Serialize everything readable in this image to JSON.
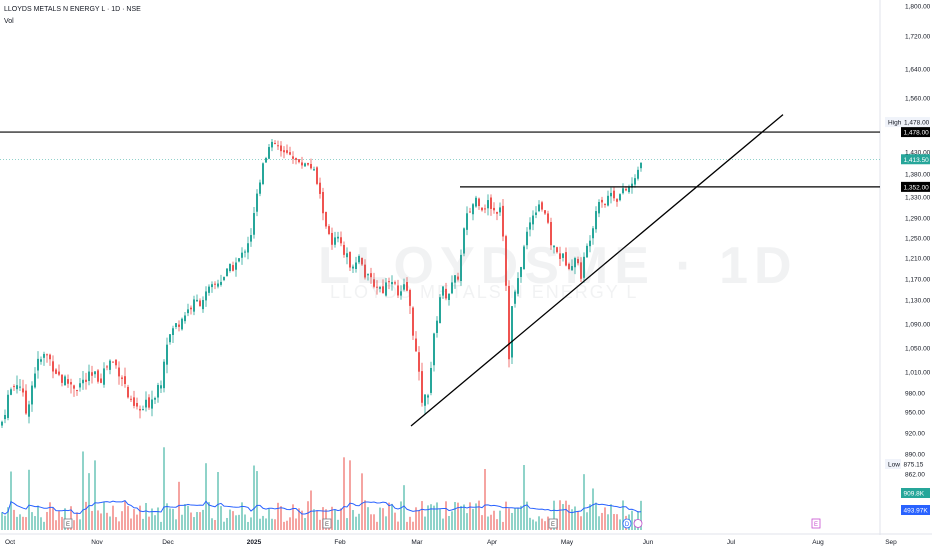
{
  "legend": {
    "symbol_line": "LLOYDS METALS N ENERGY L · 1D · NSE",
    "vol_label": "Vol"
  },
  "watermark": {
    "ticker": "LLOYDSME · 1D",
    "name": "LLOYDS METALS N ENERGY L"
  },
  "colors": {
    "up": "#26a69a",
    "down": "#ef5350",
    "vol_up": "#8fd3c9",
    "vol_down": "#f5a4a1",
    "ma": "#2962ff",
    "line": "#000000",
    "accent": "#2962ff"
  },
  "chart_data": {
    "type": "candlestick",
    "title": "LLOYDS METALS N ENERGY L · 1D · NSE",
    "y_ticks": [
      "1,800.00",
      "1,720.00",
      "1,640.00",
      "1,560.00",
      "1,430.00",
      "1,380.00",
      "1,330.00",
      "1,290.00",
      "1,250.00",
      "1,210.00",
      "1,170.00",
      "1,130.00",
      "1,090.00",
      "1,050.00",
      "1,010.00",
      "980.00",
      "950.00",
      "920.00",
      "890.00",
      "862.00"
    ],
    "price_labels": [
      {
        "text": "1,478.00",
        "style": "black"
      },
      {
        "text": "1,413.50",
        "style": "green"
      },
      {
        "text": "1,352.00",
        "style": "black"
      },
      {
        "text": "875.15",
        "style": "plain"
      },
      {
        "text": "909.8K",
        "style": "teal"
      },
      {
        "text": "493.97K",
        "style": "blue"
      }
    ],
    "high_label": {
      "title": "High",
      "value": "1,478.00"
    },
    "low_label": {
      "title": "Low",
      "value": "875.15"
    },
    "x_ticks": [
      "Oct",
      "Nov",
      "Dec",
      "2025",
      "Feb",
      "Mar",
      "Apr",
      "May",
      "Jun",
      "Jul",
      "Aug",
      "Sep"
    ],
    "event_markers": [
      {
        "text": "E",
        "month": "Nov"
      },
      {
        "text": "E",
        "month": "Feb"
      },
      {
        "text": "E",
        "month": "May"
      },
      {
        "text": "E",
        "month": "Aug"
      },
      {
        "text": "D",
        "month": "Jun"
      }
    ],
    "horizontal_levels": [
      1478,
      1352
    ],
    "trendline": {
      "from": [
        930,
        "Mar"
      ],
      "to": [
        1520,
        "Jul"
      ]
    },
    "price_path": [
      [
        0,
        930
      ],
      [
        8,
        980
      ],
      [
        18,
        1000
      ],
      [
        25,
        950
      ],
      [
        35,
        1020
      ],
      [
        45,
        1040
      ],
      [
        60,
        1000
      ],
      [
        75,
        990
      ],
      [
        88,
        1000
      ],
      [
        100,
        1005
      ],
      [
        110,
        1030
      ],
      [
        120,
        1010
      ],
      [
        130,
        960
      ],
      [
        140,
        950
      ],
      [
        150,
        970
      ],
      [
        160,
        1000
      ],
      [
        165,
        1060
      ],
      [
        172,
        1080
      ],
      [
        180,
        1100
      ],
      [
        190,
        1120
      ],
      [
        200,
        1130
      ],
      [
        210,
        1150
      ],
      [
        220,
        1170
      ],
      [
        230,
        1190
      ],
      [
        240,
        1210
      ],
      [
        250,
        1260
      ],
      [
        256,
        1330
      ],
      [
        262,
        1410
      ],
      [
        268,
        1440
      ],
      [
        275,
        1450
      ],
      [
        282,
        1420
      ],
      [
        290,
        1430
      ],
      [
        298,
        1400
      ],
      [
        306,
        1410
      ],
      [
        314,
        1380
      ],
      [
        320,
        1320
      ],
      [
        325,
        1280
      ],
      [
        330,
        1230
      ],
      [
        336,
        1250
      ],
      [
        342,
        1220
      ],
      [
        350,
        1200
      ],
      [
        358,
        1210
      ],
      [
        366,
        1170
      ],
      [
        374,
        1160
      ],
      [
        382,
        1150
      ],
      [
        390,
        1180
      ],
      [
        398,
        1130
      ],
      [
        405,
        1160
      ],
      [
        412,
        1080
      ],
      [
        418,
        1000
      ],
      [
        422,
        960
      ],
      [
        428,
        990
      ],
      [
        434,
        1080
      ],
      [
        440,
        1150
      ],
      [
        446,
        1140
      ],
      [
        452,
        1160
      ],
      [
        458,
        1180
      ],
      [
        464,
        1280
      ],
      [
        470,
        1310
      ],
      [
        476,
        1330
      ],
      [
        482,
        1310
      ],
      [
        488,
        1320
      ],
      [
        494,
        1300
      ],
      [
        500,
        1320
      ],
      [
        504,
        1200
      ],
      [
        508,
        1040
      ],
      [
        512,
        1140
      ],
      [
        516,
        1150
      ],
      [
        520,
        1200
      ],
      [
        526,
        1260
      ],
      [
        532,
        1300
      ],
      [
        538,
        1320
      ],
      [
        544,
        1300
      ],
      [
        550,
        1240
      ],
      [
        556,
        1220
      ],
      [
        562,
        1210
      ],
      [
        568,
        1200
      ],
      [
        574,
        1210
      ],
      [
        580,
        1180
      ],
      [
        586,
        1230
      ],
      [
        592,
        1280
      ],
      [
        598,
        1330
      ],
      [
        604,
        1320
      ],
      [
        610,
        1340
      ],
      [
        616,
        1330
      ],
      [
        622,
        1340
      ],
      [
        628,
        1350
      ],
      [
        634,
        1365
      ],
      [
        640,
        1413
      ]
    ]
  }
}
